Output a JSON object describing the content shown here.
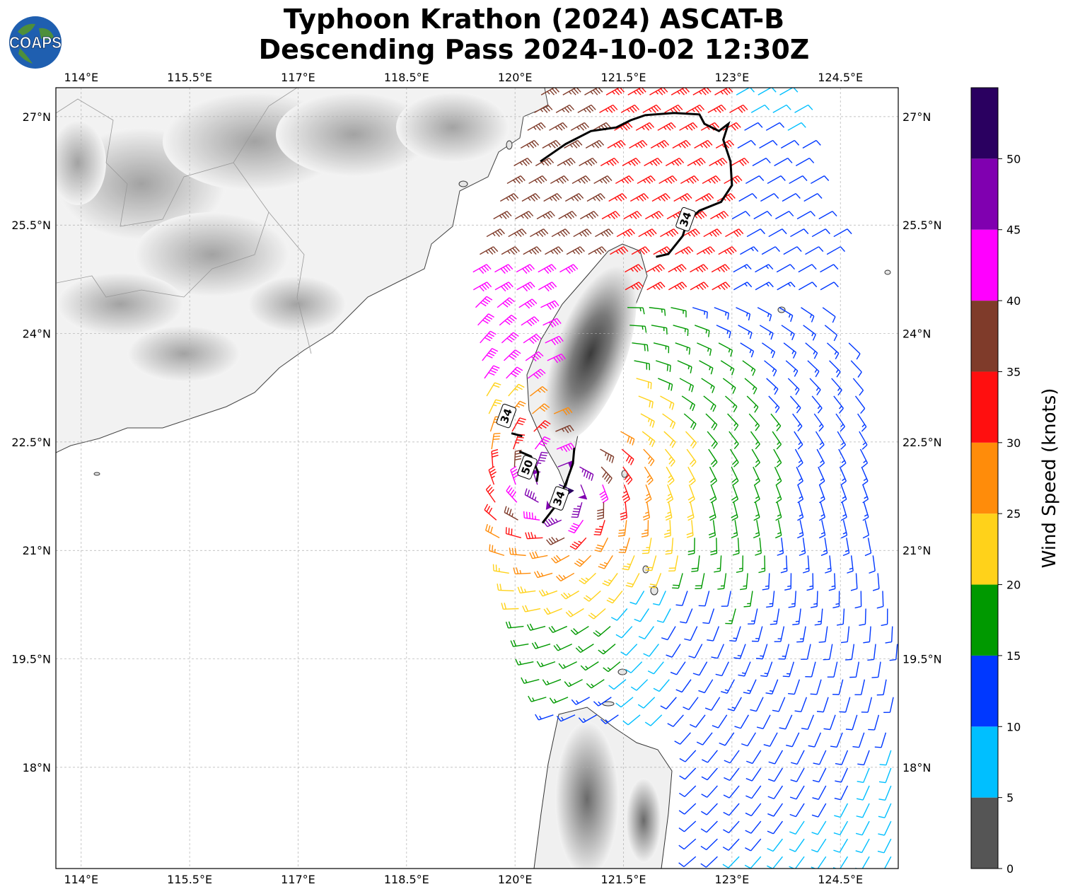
{
  "header": {
    "title_line1": "Typhoon Krathon (2024) ASCAT-B",
    "title_line2": "Descending Pass 2024-10-02 12:30Z",
    "logo_text": "COAPS"
  },
  "map": {
    "lon_range": [
      113.65,
      125.3
    ],
    "lat_range": [
      16.6,
      27.4
    ],
    "lon_ticks": [
      {
        "value": 114.0,
        "label": "114°E"
      },
      {
        "value": 115.5,
        "label": "115.5°E"
      },
      {
        "value": 117.0,
        "label": "117°E"
      },
      {
        "value": 118.5,
        "label": "118.5°E"
      },
      {
        "value": 120.0,
        "label": "120°E"
      },
      {
        "value": 121.5,
        "label": "121.5°E"
      },
      {
        "value": 123.0,
        "label": "123°E"
      },
      {
        "value": 124.5,
        "label": "124.5°E"
      }
    ],
    "lat_ticks": [
      {
        "value": 27.0,
        "label": "27°N"
      },
      {
        "value": 25.5,
        "label": "25.5°N"
      },
      {
        "value": 24.0,
        "label": "24°N"
      },
      {
        "value": 22.5,
        "label": "22.5°N"
      },
      {
        "value": 21.0,
        "label": "21°N"
      },
      {
        "value": 19.5,
        "label": "19.5°N"
      },
      {
        "value": 18.0,
        "label": "18°N"
      }
    ],
    "grid": true,
    "contours": [
      {
        "label": "34",
        "points": [
          [
            120.35,
            26.38
          ],
          [
            120.7,
            26.62
          ],
          [
            121.05,
            26.8
          ],
          [
            121.4,
            26.85
          ],
          [
            121.6,
            26.95
          ],
          [
            121.8,
            27.02
          ],
          [
            122.2,
            27.05
          ],
          [
            122.55,
            27.03
          ],
          [
            122.62,
            26.9
          ],
          [
            122.82,
            26.8
          ],
          [
            122.95,
            26.9
          ],
          [
            122.88,
            26.68
          ],
          [
            122.98,
            26.38
          ],
          [
            123.0,
            26.05
          ],
          [
            122.85,
            25.82
          ],
          [
            122.55,
            25.7
          ],
          [
            122.38,
            25.55
          ],
          [
            122.32,
            25.35
          ],
          [
            122.12,
            25.1
          ],
          [
            121.95,
            25.06
          ]
        ]
      },
      {
        "label": "34",
        "points": [
          [
            119.95,
            22.62
          ],
          [
            120.1,
            22.58
          ]
        ]
      },
      {
        "label": "50",
        "points": [
          [
            120.06,
            22.37
          ],
          [
            120.22,
            22.3
          ],
          [
            120.32,
            22.08
          ],
          [
            120.3,
            21.95
          ]
        ]
      },
      {
        "label": "34",
        "points": [
          [
            120.82,
            22.42
          ],
          [
            120.8,
            22.2
          ],
          [
            120.7,
            21.92
          ],
          [
            120.55,
            21.6
          ],
          [
            120.38,
            21.38
          ]
        ]
      }
    ],
    "contour_label_positions": [
      [
        122.36,
        25.58
      ],
      [
        119.88,
        22.86
      ],
      [
        120.17,
        22.15
      ],
      [
        120.61,
        21.72
      ]
    ],
    "land_shading": [
      {
        "name": "taiwan-mountains",
        "center": [
          121.0,
          23.75
        ],
        "rx": 0.5,
        "ry": 1.3
      }
    ]
  },
  "colorbar": {
    "label": "Wind Speed (knots)",
    "ticks": [
      "0",
      "5",
      "10",
      "15",
      "20",
      "25",
      "30",
      "35",
      "40",
      "45",
      "50"
    ],
    "bins": [
      {
        "min": 0,
        "max": 5,
        "color": "#555555"
      },
      {
        "min": 5,
        "max": 10,
        "color": "#00bfff"
      },
      {
        "min": 10,
        "max": 15,
        "color": "#0038ff"
      },
      {
        "min": 15,
        "max": 20,
        "color": "#009900"
      },
      {
        "min": 20,
        "max": 25,
        "color": "#ffd21a"
      },
      {
        "min": 25,
        "max": 30,
        "color": "#ff8c0a"
      },
      {
        "min": 30,
        "max": 35,
        "color": "#ff0f0f"
      },
      {
        "min": 35,
        "max": 40,
        "color": "#7f3b2a"
      },
      {
        "min": 40,
        "max": 45,
        "color": "#ff00ff"
      },
      {
        "min": 45,
        "max": 50,
        "color": "#8000b0"
      },
      {
        "min": 50,
        "max": 55,
        "color": "#2a0060"
      }
    ]
  },
  "wind_field": {
    "description_units": "knots",
    "center": [
      120.6,
      21.9
    ],
    "swath_west_edge": [
      [
        120.4,
        27.4
      ],
      [
        119.4,
        24.8
      ],
      [
        119.65,
        22.8
      ],
      [
        119.75,
        21.3
      ],
      [
        120.05,
        20.2
      ],
      [
        120.3,
        19.3
      ],
      [
        120.7,
        18.3
      ]
    ],
    "swath_east_edge": [
      [
        123.9,
        27.4
      ],
      [
        124.4,
        25.4
      ],
      [
        124.6,
        24.0
      ],
      [
        124.9,
        22.0
      ],
      [
        125.3,
        20.5
      ]
    ]
  }
}
